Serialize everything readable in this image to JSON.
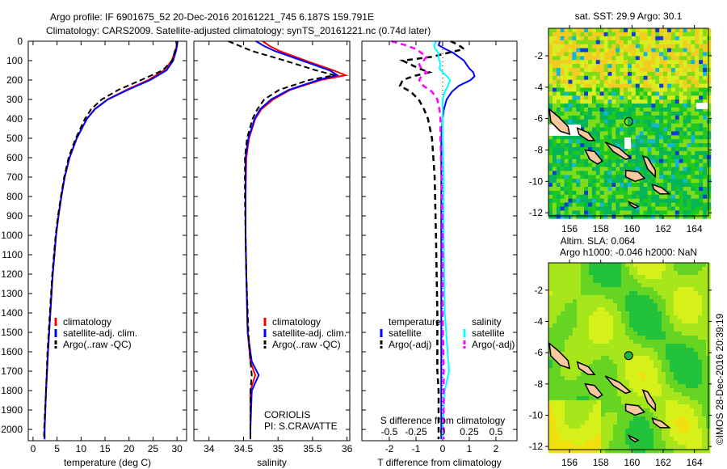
{
  "title": {
    "line1": "Argo profile: IF 6901675_52 20-Dec-2016 20161221_745 6.187S 159.791E",
    "line2": "Climatology: CARS2009. Satellite-adjusted climatology: synTS_20161221.nc (0.74d later)"
  },
  "credits": {
    "institution": "CORIOLIS",
    "pi": "PI: S.CRAVATTE",
    "copyright": "©IMOS 28-Dec-2016 20:39:19"
  },
  "colors": {
    "climatology": "#ff0000",
    "satellite": "#0000ff",
    "argo": "#000000",
    "sal_satellite": "#00ffff",
    "sal_argo": "#ff00ff",
    "land": "#f9c89c"
  },
  "chart_data": [
    {
      "type": "line",
      "title": "",
      "xlabel": "temperature (deg C)",
      "ylabel": "",
      "xlim": [
        -1,
        32
      ],
      "ylim": [
        2058,
        0
      ],
      "xticks": [
        "0",
        "5",
        "10",
        "15",
        "20",
        "25",
        "30"
      ],
      "xtick_values": [
        0,
        5,
        10,
        15,
        20,
        25,
        30
      ],
      "yticks": [
        "0",
        "100",
        "200",
        "300",
        "400",
        "500",
        "600",
        "700",
        "800",
        "900",
        "1000",
        "1100",
        "1200",
        "1300",
        "1400",
        "1500",
        "1600",
        "1700",
        "1800",
        "1900",
        "2000"
      ],
      "legend": [
        "climatology",
        "satellite-adj. clim.",
        "Argo(..raw -QC)"
      ],
      "legend_position": "lower-center",
      "depth": [
        0,
        25,
        50,
        100,
        150,
        200,
        250,
        300,
        350,
        400,
        500,
        600,
        700,
        800,
        900,
        1000,
        1200,
        1400,
        1600,
        1800,
        2000,
        2050
      ],
      "series": [
        {
          "name": "climatology",
          "values": [
            29.9,
            29.9,
            29.6,
            28.9,
            27.3,
            24.0,
            19.5,
            15.5,
            12.8,
            11.2,
            9.1,
            7.6,
            6.6,
            5.9,
            5.3,
            4.8,
            4.1,
            3.6,
            3.1,
            2.7,
            2.4,
            2.4
          ]
        },
        {
          "name": "satellite-adj. clim.",
          "values": [
            29.8,
            30.0,
            29.8,
            29.2,
            27.8,
            24.4,
            19.8,
            15.6,
            12.9,
            11.2,
            9.1,
            7.6,
            6.6,
            5.9,
            5.3,
            4.8,
            4.1,
            3.6,
            3.1,
            2.7,
            2.4,
            2.4
          ]
        },
        {
          "name": "Argo(..raw -QC)",
          "values": [
            30.1,
            30.0,
            29.6,
            29.0,
            27.0,
            22.5,
            17.8,
            14.3,
            12.1,
            10.8,
            8.9,
            7.4,
            6.5,
            5.8,
            5.2,
            4.7,
            4.0,
            3.5,
            3.0,
            2.7,
            2.3,
            2.3
          ]
        }
      ]
    },
    {
      "type": "line",
      "xlabel": "salinity",
      "xlim": [
        33.78,
        36.04
      ],
      "ylim": [
        2058,
        0
      ],
      "xticks": [
        "34",
        "34.5",
        "35",
        "35.5",
        "36"
      ],
      "xtick_values": [
        34,
        34.5,
        35,
        35.5,
        36
      ],
      "legend": [
        "climatology",
        "satellite-adj. clim.",
        "Argo(..raw -QC)"
      ],
      "legend_position": "lower-right",
      "depth": [
        0,
        25,
        50,
        100,
        150,
        175,
        200,
        250,
        300,
        350,
        400,
        500,
        600,
        800,
        1000,
        1200,
        1500,
        1650,
        1720,
        1800,
        2000,
        2050
      ],
      "series": [
        {
          "name": "climatology",
          "values": [
            34.78,
            34.88,
            35.02,
            35.4,
            35.8,
            35.98,
            35.62,
            35.18,
            34.93,
            34.76,
            34.67,
            34.58,
            34.54,
            34.53,
            34.53,
            34.54,
            34.56,
            34.6,
            34.67,
            34.6,
            34.6,
            34.6
          ]
        },
        {
          "name": "satellite-adj. clim.",
          "values": [
            34.68,
            34.8,
            34.95,
            35.35,
            35.75,
            35.86,
            35.58,
            35.16,
            34.9,
            34.74,
            34.66,
            34.57,
            34.53,
            34.53,
            34.53,
            34.54,
            34.56,
            34.62,
            34.72,
            34.62,
            34.6,
            34.6
          ]
        },
        {
          "name": "Argo(..raw -QC)",
          "values": [
            34.28,
            34.45,
            34.62,
            35.1,
            35.55,
            35.82,
            35.45,
            35.02,
            34.8,
            34.7,
            34.63,
            34.55,
            34.52,
            34.52,
            34.53,
            34.54,
            34.57,
            34.6,
            34.62,
            34.6,
            34.6,
            34.6
          ]
        }
      ]
    },
    {
      "type": "line",
      "xlabel": "T difference from climatology",
      "xlabel2": "S difference from climatology",
      "xlim": [
        -3.03,
        2.79
      ],
      "ylim": [
        2058,
        0
      ],
      "xticks": [
        "-2",
        "-1",
        "0",
        "1",
        "2"
      ],
      "xtick_values": [
        -2,
        -1,
        0,
        1,
        2
      ],
      "xticks2": [
        "-0.5",
        "-0.25",
        "0",
        "0.25",
        "0.5"
      ],
      "xtick_values2": [
        -0.5,
        -0.25,
        0,
        0.25,
        0.5
      ],
      "legend_headers": [
        "temperature",
        "salinity"
      ],
      "legend": [
        "satellite",
        "Argo(-adj)",
        "satellite",
        "Argo(-adj)"
      ],
      "legend_position": "lower-center",
      "depth": [
        0,
        20,
        40,
        60,
        80,
        100,
        120,
        140,
        160,
        180,
        200,
        230,
        260,
        300,
        350,
        400,
        500,
        700,
        1000,
        1400,
        1700,
        1800,
        2000,
        2050
      ],
      "series": [
        {
          "name": "T satellite",
          "axis": "T",
          "values": [
            -0.1,
            -0.15,
            0.1,
            0.4,
            0.6,
            0.8,
            0.9,
            1.0,
            1.15,
            1.2,
            1.05,
            0.6,
            0.35,
            0.15,
            0.05,
            0.0,
            -0.05,
            -0.05,
            -0.05,
            -0.05,
            -0.05,
            -0.05,
            -0.05,
            -0.05
          ]
        },
        {
          "name": "T Argo(-adj)",
          "axis": "T",
          "values": [
            0.3,
            0.6,
            0.8,
            0.2,
            -0.4,
            -1.5,
            -1.2,
            -0.9,
            -0.5,
            -1.1,
            -1.5,
            -1.6,
            -1.2,
            -0.9,
            -0.7,
            -0.55,
            -0.4,
            -0.3,
            -0.25,
            -0.2,
            -0.2,
            -0.15,
            -0.15,
            -0.15
          ]
        },
        {
          "name": "S satellite",
          "axis": "S",
          "values": [
            -0.06,
            -0.08,
            -0.07,
            -0.04,
            -0.04,
            -0.03,
            -0.02,
            -0.03,
            0.0,
            0.04,
            0.07,
            0.05,
            0.02,
            0.0,
            0.0,
            0.0,
            0.0,
            0.01,
            0.01,
            0.02,
            0.06,
            0.02,
            0.0,
            0.0
          ]
        },
        {
          "name": "S Argo(-adj)",
          "axis": "S",
          "values": [
            -0.48,
            -0.35,
            -0.25,
            -0.2,
            -0.15,
            -0.18,
            -0.22,
            -0.2,
            -0.15,
            -0.2,
            -0.22,
            -0.18,
            -0.1,
            -0.05,
            -0.03,
            -0.02,
            -0.02,
            -0.01,
            0.0,
            0.0,
            0.01,
            0.01,
            0.01,
            0.01
          ]
        }
      ]
    },
    {
      "type": "heatmap",
      "title": "sat. SST: 29.9 Argo: 30.1",
      "xlim": [
        154.65,
        164.9
      ],
      "ylim": [
        -12.2,
        -0.25
      ],
      "xticks": [
        "156",
        "158",
        "160",
        "162",
        "164"
      ],
      "xtick_values": [
        156,
        158,
        160,
        162,
        164
      ],
      "yticks": [
        "-2",
        "-4",
        "-6",
        "-8",
        "-10",
        "-12"
      ],
      "ytick_values": [
        -2,
        -4,
        -6,
        -8,
        -10,
        -12
      ],
      "argo_position": {
        "lon": 159.791,
        "lat": -6.187
      }
    },
    {
      "type": "heatmap",
      "title": "Altim. SLA: 0.064",
      "subtitle": "Argo h1000: -0.046 h2000: NaN",
      "xlim": [
        154.65,
        164.9
      ],
      "ylim": [
        -12.2,
        -0.25
      ],
      "xticks": [
        "156",
        "158",
        "160",
        "162",
        "164"
      ],
      "xtick_values": [
        156,
        158,
        160,
        162,
        164
      ],
      "yticks": [
        "-2",
        "-4",
        "-6",
        "-8",
        "-10",
        "-12"
      ],
      "ytick_values": [
        -2,
        -4,
        -6,
        -8,
        -10,
        -12
      ],
      "argo_position": {
        "lon": 159.791,
        "lat": -6.187
      }
    }
  ]
}
